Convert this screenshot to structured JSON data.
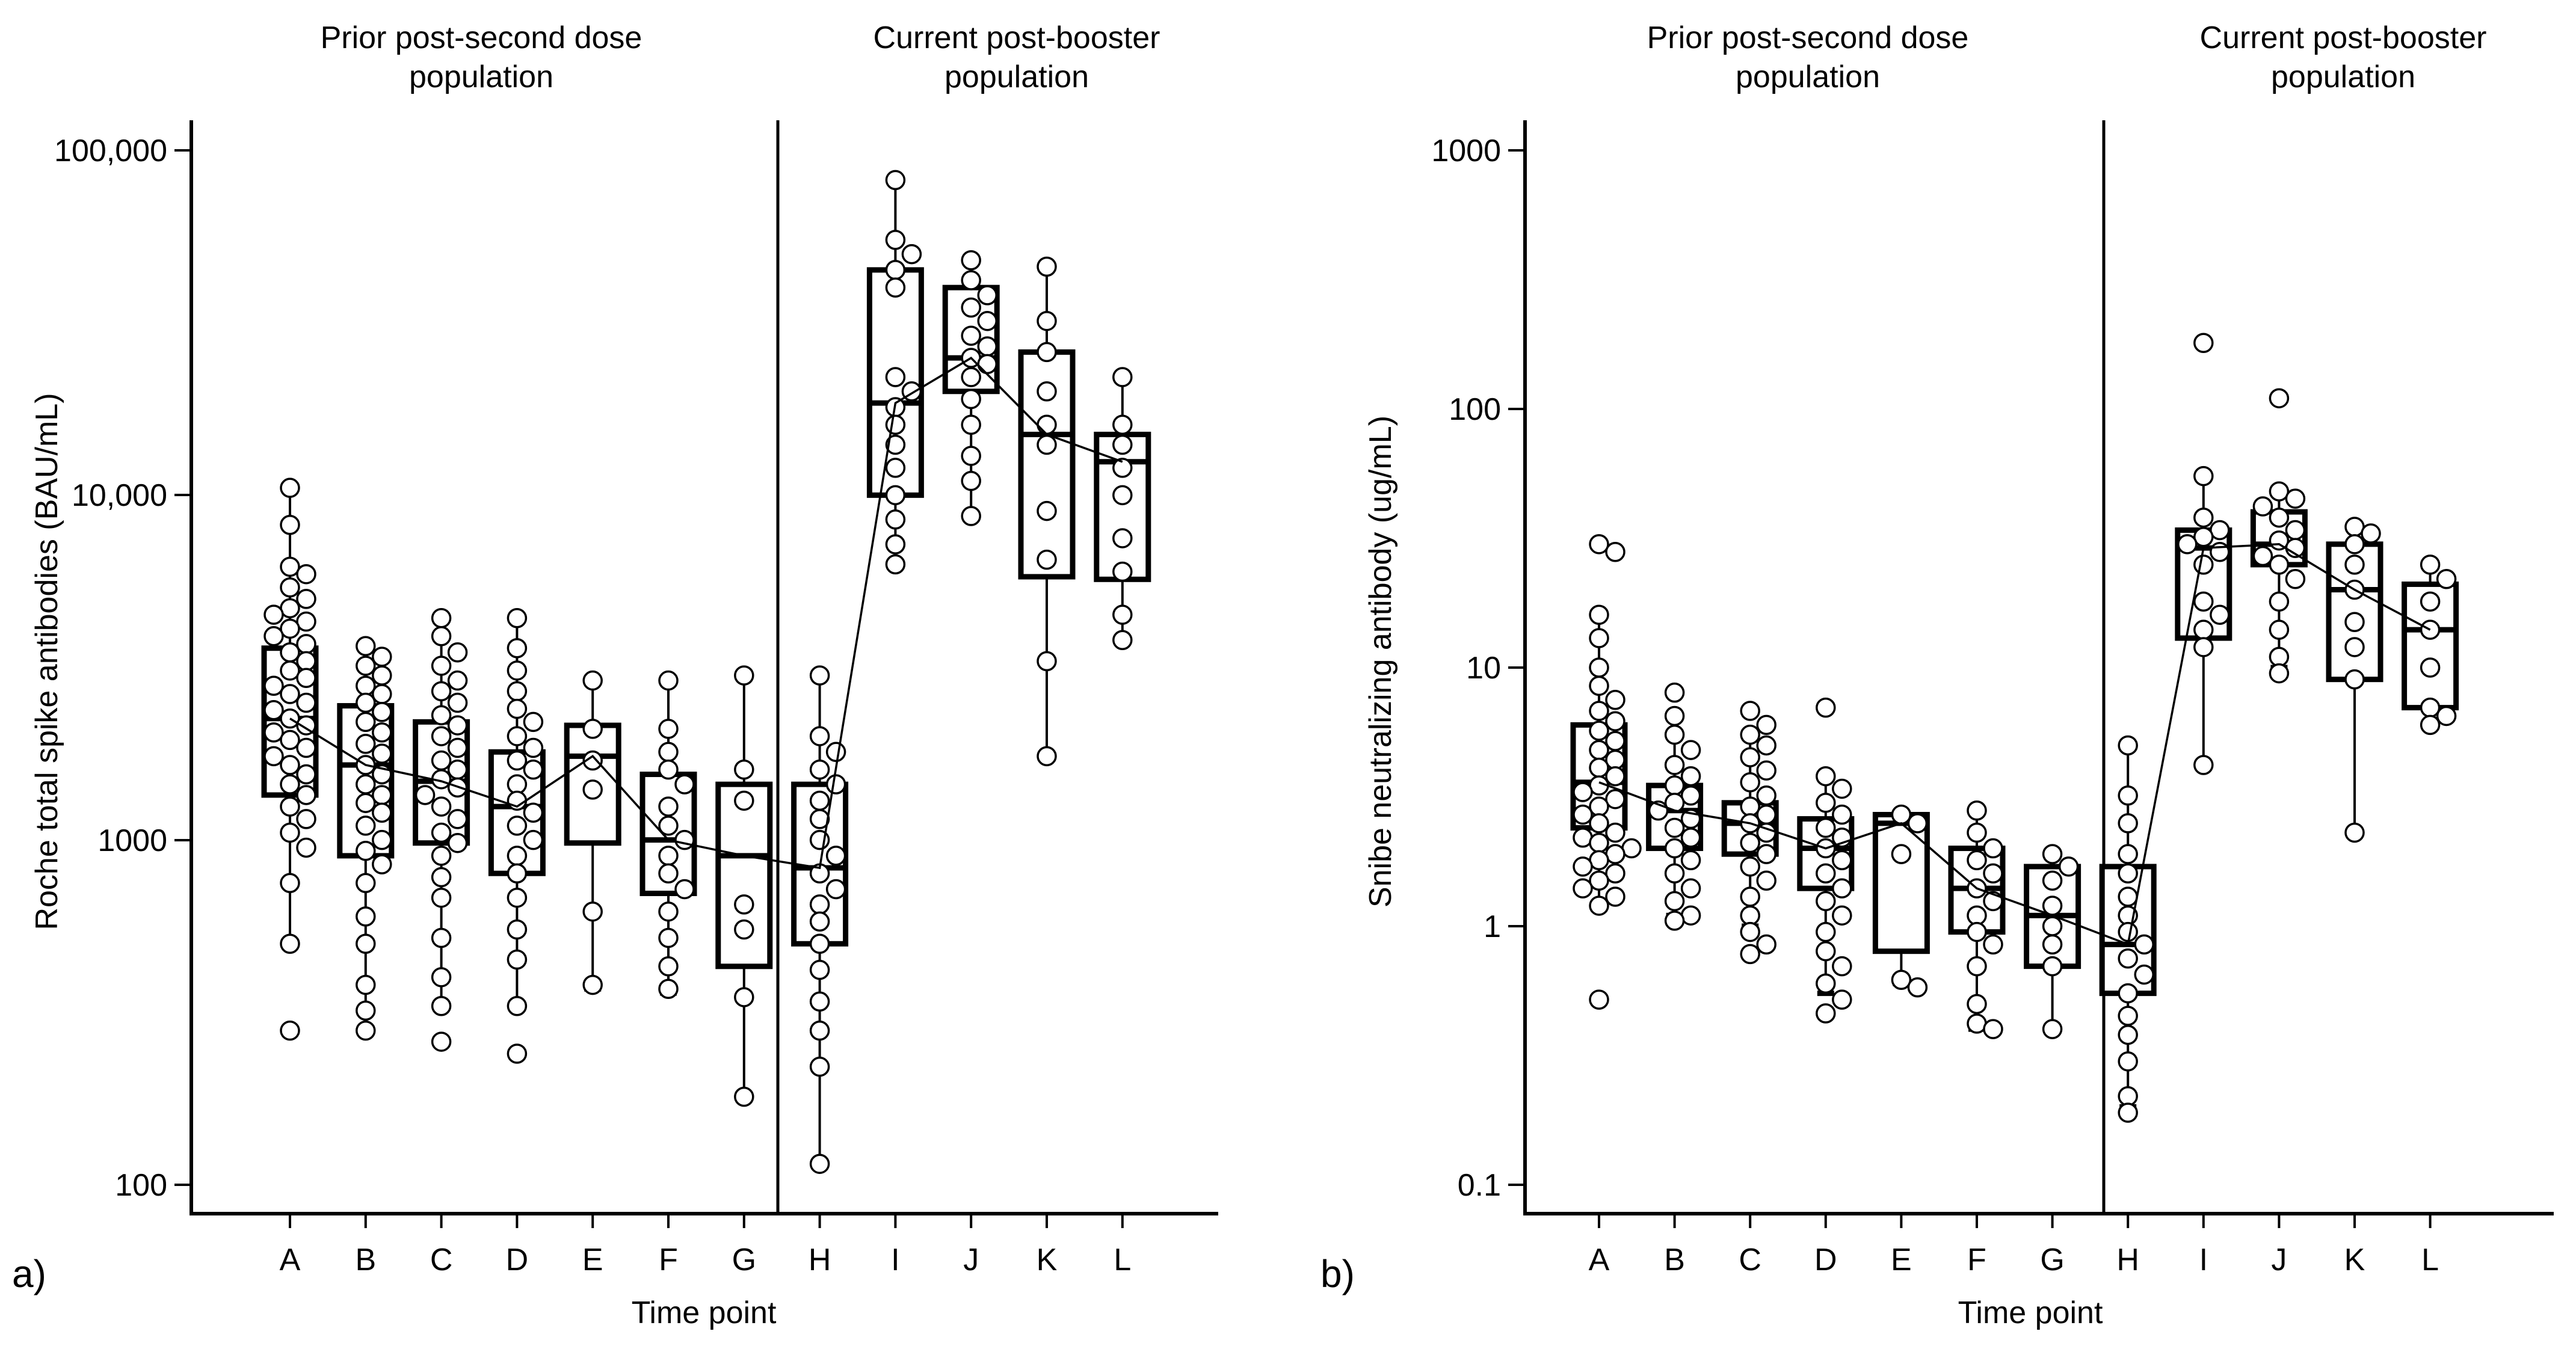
{
  "chart_data": [
    {
      "type": "box",
      "panel_label": "a)",
      "xlabel": "Time point",
      "ylabel": "Roche total spike antibodies (BAU/mL)",
      "yscale": "log",
      "ylim": [
        100,
        100000
      ],
      "yticks": [
        100,
        1000,
        10000,
        100000
      ],
      "ytick_labels": [
        "100",
        "1000",
        "10,000",
        "100,000"
      ],
      "groups": [
        {
          "title_lines": [
            "Prior post-second dose",
            "population"
          ],
          "categories": [
            "A",
            "B",
            "C",
            "D",
            "E",
            "F",
            "G"
          ]
        },
        {
          "title_lines": [
            "Current post-booster",
            "population"
          ],
          "categories": [
            "H",
            "I",
            "J",
            "K",
            "L"
          ]
        }
      ],
      "categories": [
        "A",
        "B",
        "C",
        "D",
        "E",
        "F",
        "G",
        "H",
        "I",
        "J",
        "K",
        "L"
      ],
      "boxes": [
        {
          "cat": "A",
          "q1": 1350,
          "median": 2250,
          "q3": 3600,
          "whisker_low": 500,
          "whisker_high": 10500
        },
        {
          "cat": "B",
          "q1": 900,
          "median": 1650,
          "q3": 2450,
          "whisker_low": 280,
          "whisker_high": 3650
        },
        {
          "cat": "C",
          "q1": 980,
          "median": 1480,
          "q3": 2200,
          "whisker_low": 330,
          "whisker_high": 4400
        },
        {
          "cat": "D",
          "q1": 800,
          "median": 1250,
          "q3": 1800,
          "whisker_low": 330,
          "whisker_high": 4400
        },
        {
          "cat": "E",
          "q1": 980,
          "median": 1750,
          "q3": 2150,
          "whisker_low": 370,
          "whisker_high": 2900
        },
        {
          "cat": "F",
          "q1": 700,
          "median": 1000,
          "q3": 1550,
          "whisker_low": 360,
          "whisker_high": 2900
        },
        {
          "cat": "G",
          "q1": 430,
          "median": 900,
          "q3": 1450,
          "whisker_low": 180,
          "whisker_high": 3000
        },
        {
          "cat": "H",
          "q1": 500,
          "median": 830,
          "q3": 1450,
          "whisker_low": 115,
          "whisker_high": 3000
        },
        {
          "cat": "I",
          "q1": 10000,
          "median": 18500,
          "q3": 45000,
          "whisker_low": 6300,
          "whisker_high": 82000
        },
        {
          "cat": "J",
          "q1": 20000,
          "median": 25000,
          "q3": 40000,
          "whisker_low": 8700,
          "whisker_high": 48000
        },
        {
          "cat": "K",
          "q1": 5800,
          "median": 15000,
          "q3": 26000,
          "whisker_low": 1750,
          "whisker_high": 46000
        },
        {
          "cat": "L",
          "q1": 5700,
          "median": 12500,
          "q3": 15000,
          "whisker_low": 3800,
          "whisker_high": 22000
        }
      ],
      "median_line": [
        2250,
        1650,
        1480,
        1250,
        1750,
        1000,
        900,
        830,
        18500,
        25000,
        15000,
        12500
      ],
      "points": {
        "A": [
          10500,
          8200,
          6200,
          5900,
          5400,
          5000,
          4700,
          4500,
          4300,
          4100,
          3900,
          3700,
          3500,
          3300,
          3100,
          2950,
          2800,
          2650,
          2500,
          2380,
          2250,
          2150,
          2050,
          1950,
          1850,
          1750,
          1650,
          1550,
          1450,
          1350,
          1250,
          1150,
          1050,
          950,
          750,
          500,
          280
        ],
        "B": [
          3650,
          3400,
          3200,
          3000,
          2800,
          2650,
          2500,
          2350,
          2200,
          2050,
          1900,
          1780,
          1650,
          1550,
          1450,
          1350,
          1280,
          1200,
          1100,
          1000,
          930,
          850,
          750,
          600,
          500,
          380,
          320,
          280
        ],
        "C": [
          4400,
          3900,
          3500,
          3200,
          2900,
          2700,
          2500,
          2300,
          2150,
          2000,
          1850,
          1700,
          1600,
          1500,
          1420,
          1350,
          1250,
          1150,
          1050,
          980,
          900,
          780,
          680,
          520,
          400,
          330,
          260
        ],
        "D": [
          4400,
          3600,
          3100,
          2700,
          2400,
          2200,
          2000,
          1850,
          1700,
          1600,
          1450,
          1300,
          1200,
          1100,
          1000,
          900,
          800,
          680,
          550,
          450,
          330,
          240
        ],
        "E": [
          2900,
          2100,
          1700,
          1400,
          620,
          380
        ],
        "F": [
          2900,
          2100,
          1800,
          1600,
          1450,
          1250,
          1100,
          1000,
          900,
          800,
          720,
          620,
          520,
          430,
          370
        ],
        "G": [
          3000,
          1600,
          1300,
          650,
          550,
          350,
          180
        ],
        "H": [
          3000,
          2000,
          1800,
          1600,
          1450,
          1300,
          1150,
          1000,
          900,
          800,
          720,
          650,
          580,
          500,
          420,
          340,
          280,
          220,
          115
        ],
        "I": [
          82000,
          55000,
          50000,
          45000,
          40000,
          22000,
          20000,
          18000,
          16000,
          14000,
          12000,
          10000,
          8500,
          7200,
          6300
        ],
        "J": [
          48000,
          42000,
          38000,
          35000,
          32000,
          29000,
          27000,
          25000,
          24000,
          22000,
          19000,
          16000,
          13000,
          11000,
          8700
        ],
        "K": [
          46000,
          32000,
          26000,
          20000,
          16000,
          14000,
          9000,
          6500,
          3300,
          1750
        ],
        "L": [
          22000,
          16000,
          14000,
          12000,
          10000,
          7500,
          6000,
          4500,
          3800
        ]
      }
    },
    {
      "type": "box",
      "panel_label": "b)",
      "xlabel": "Time point",
      "ylabel": "Snibe neutralizing antibody (ug/mL)",
      "yscale": "log",
      "ylim": [
        0.1,
        1000
      ],
      "yticks": [
        0.1,
        1,
        10,
        100,
        1000
      ],
      "ytick_labels": [
        "0.1",
        "1",
        "10",
        "100",
        "1000"
      ],
      "groups": [
        {
          "title_lines": [
            "Prior post-second dose",
            "population"
          ],
          "categories": [
            "A",
            "B",
            "C",
            "D",
            "E",
            "F",
            "G"
          ]
        },
        {
          "title_lines": [
            "Current post-booster",
            "population"
          ],
          "categories": [
            "H",
            "I",
            "J",
            "K",
            "L"
          ]
        }
      ],
      "categories": [
        "A",
        "B",
        "C",
        "D",
        "E",
        "F",
        "G",
        "H",
        "I",
        "J",
        "K",
        "L"
      ],
      "boxes": [
        {
          "cat": "A",
          "q1": 2.4,
          "median": 3.6,
          "q3": 6.0,
          "whisker_low": 1.2,
          "whisker_high": 16
        },
        {
          "cat": "B",
          "q1": 2.0,
          "median": 2.8,
          "q3": 3.5,
          "whisker_low": 1.1,
          "whisker_high": 6.5
        },
        {
          "cat": "C",
          "q1": 1.9,
          "median": 2.5,
          "q3": 3.0,
          "whisker_low": 1.0,
          "whisker_high": 5.5
        },
        {
          "cat": "D",
          "q1": 1.4,
          "median": 2.0,
          "q3": 2.6,
          "whisker_low": 0.55,
          "whisker_high": 3.8
        },
        {
          "cat": "E",
          "q1": 0.8,
          "median": 2.5,
          "q3": 2.7,
          "whisker_low": 0.6,
          "whisker_high": 2.7
        },
        {
          "cat": "F",
          "q1": 0.95,
          "median": 1.4,
          "q3": 2.0,
          "whisker_low": 0.4,
          "whisker_high": 2.8
        },
        {
          "cat": "G",
          "q1": 0.7,
          "median": 1.1,
          "q3": 1.7,
          "whisker_low": 0.4,
          "whisker_high": 1.9
        },
        {
          "cat": "H",
          "q1": 0.55,
          "median": 0.85,
          "q3": 1.7,
          "whisker_low": 0.2,
          "whisker_high": 5.0
        },
        {
          "cat": "I",
          "q1": 13,
          "median": 29,
          "q3": 34,
          "whisker_low": 4.2,
          "whisker_high": 55
        },
        {
          "cat": "J",
          "q1": 25,
          "median": 30,
          "q3": 40,
          "whisker_low": 10,
          "whisker_high": 48
        },
        {
          "cat": "K",
          "q1": 9,
          "median": 20,
          "q3": 30,
          "whisker_low": 2.3,
          "whisker_high": 35
        },
        {
          "cat": "L",
          "q1": 7,
          "median": 14,
          "q3": 21,
          "whisker_low": 6,
          "whisker_high": 25
        }
      ],
      "median_line": [
        3.6,
        2.8,
        2.5,
        2.0,
        2.5,
        1.4,
        1.1,
        0.85,
        29,
        30,
        20,
        14
      ],
      "points": {
        "A": [
          30,
          28,
          16,
          13,
          10,
          8.5,
          7.5,
          6.8,
          6.2,
          5.7,
          5.2,
          4.8,
          4.4,
          4.1,
          3.8,
          3.5,
          3.3,
          3.1,
          2.9,
          2.7,
          2.5,
          2.3,
          2.2,
          2.1,
          2.0,
          1.9,
          1.8,
          1.7,
          1.6,
          1.5,
          1.4,
          1.3,
          1.2,
          0.52
        ],
        "B": [
          8.0,
          6.5,
          5.5,
          4.8,
          4.2,
          3.8,
          3.5,
          3.2,
          3.0,
          2.8,
          2.6,
          2.4,
          2.2,
          2.0,
          1.8,
          1.6,
          1.4,
          1.25,
          1.1,
          1.05
        ],
        "C": [
          6.8,
          6.0,
          5.5,
          5.0,
          4.5,
          4.0,
          3.6,
          3.2,
          2.9,
          2.7,
          2.5,
          2.3,
          2.1,
          1.9,
          1.7,
          1.5,
          1.3,
          1.1,
          0.95,
          0.85,
          0.78
        ],
        "D": [
          7.0,
          3.8,
          3.4,
          3.0,
          2.7,
          2.4,
          2.2,
          2.0,
          1.8,
          1.6,
          1.4,
          1.25,
          1.1,
          0.95,
          0.8,
          0.7,
          0.6,
          0.52,
          0.46
        ],
        "E": [
          2.7,
          2.5,
          1.9,
          0.62,
          0.58
        ],
        "F": [
          2.8,
          2.3,
          2.0,
          1.8,
          1.6,
          1.4,
          1.25,
          1.1,
          0.95,
          0.85,
          0.7,
          0.5,
          0.42,
          0.4
        ],
        "G": [
          1.9,
          1.7,
          1.5,
          1.2,
          1.0,
          0.85,
          0.7,
          0.4
        ],
        "H": [
          5.0,
          3.2,
          2.5,
          1.9,
          1.6,
          1.3,
          1.1,
          0.95,
          0.85,
          0.75,
          0.65,
          0.55,
          0.45,
          0.38,
          0.3,
          0.22,
          0.19
        ],
        "I": [
          180,
          55,
          38,
          34,
          32,
          30,
          28,
          25,
          18,
          16,
          14,
          12,
          4.2
        ],
        "J": [
          110,
          48,
          45,
          42,
          38,
          34,
          31,
          29,
          27,
          25,
          22,
          18,
          14,
          11,
          9.5
        ],
        "K": [
          35,
          33,
          30,
          25,
          20,
          15,
          12,
          9,
          2.3
        ],
        "L": [
          25,
          22,
          18,
          14,
          10,
          7,
          6.5,
          6
        ]
      }
    }
  ]
}
